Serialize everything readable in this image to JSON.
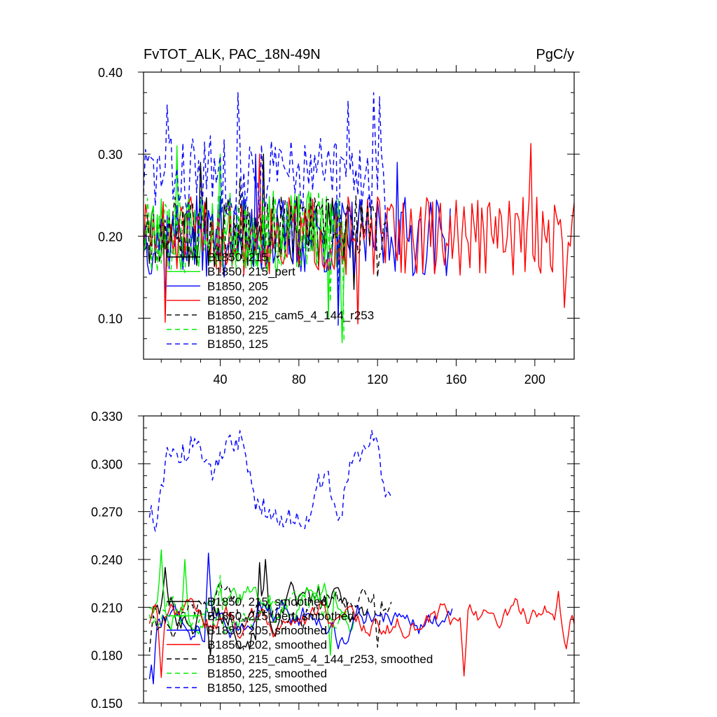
{
  "figure": {
    "title": "FvTOT_ALK, PAC_18N-49N",
    "units": "PgC/y"
  },
  "chart_data": [
    {
      "type": "line",
      "title": "FvTOT_ALK, PAC_18N-49N",
      "units": "PgC/y",
      "xlim": [
        1,
        220
      ],
      "ylim": [
        0.05,
        0.4
      ],
      "xticks": [
        40,
        80,
        120,
        160,
        200
      ],
      "yticks": [
        0.1,
        0.2,
        0.3,
        0.4
      ],
      "ytick_labels": [
        "0.10",
        "0.20",
        "0.30",
        "0.40"
      ],
      "legend_position": "lower-left",
      "series": [
        {
          "name": "B1850, 215",
          "color": "#000000",
          "dash": "solid",
          "length": 112,
          "mean": 0.205,
          "amp": 0.045,
          "seed": 11,
          "extremes": [
            [
              30,
              0.29
            ],
            [
              62,
              0.3
            ],
            [
              108,
              0.135
            ]
          ]
        },
        {
          "name": "B1850, 215_pert",
          "color": "#00ee00",
          "dash": "solid",
          "length": 105,
          "mean": 0.205,
          "amp": 0.05,
          "seed": 23,
          "extremes": [
            [
              18,
              0.31
            ],
            [
              40,
              0.3
            ],
            [
              95,
              0.1
            ],
            [
              102,
              0.07
            ]
          ]
        },
        {
          "name": "B1850, 205",
          "color": "#0000ff",
          "dash": "solid",
          "length": 157,
          "mean": 0.2,
          "amp": 0.05,
          "seed": 37,
          "extremes": [
            [
              12,
              0.11
            ],
            [
              58,
              0.3
            ],
            [
              100,
              0.1
            ],
            [
              130,
              0.29
            ]
          ]
        },
        {
          "name": "B1850, 202",
          "color": "#ff0000",
          "dash": "solid",
          "length": 220,
          "mean": 0.2,
          "amp": 0.048,
          "seed": 51,
          "extremes": [
            [
              12,
              0.095
            ],
            [
              110,
              0.093
            ],
            [
              198,
              0.313
            ],
            [
              215,
              0.113
            ],
            [
              60,
              0.3
            ]
          ]
        },
        {
          "name": "B1850, 215_cam5_4_144_r253",
          "color": "#000000",
          "dash": "dashed",
          "length": 125,
          "mean": 0.21,
          "amp": 0.04,
          "seed": 67,
          "extremes": [
            [
              50,
              0.27
            ],
            [
              120,
              0.15
            ]
          ]
        },
        {
          "name": "B1850, 225",
          "color": "#00ee00",
          "dash": "dashed",
          "length": 103,
          "mean": 0.205,
          "amp": 0.05,
          "seed": 79,
          "extremes": [
            [
              96,
              0.12
            ],
            [
              103,
              0.07
            ]
          ]
        },
        {
          "name": "B1850, 125",
          "color": "#0000ff",
          "dash": "dashed",
          "length": 124,
          "mean": 0.275,
          "amp": 0.05,
          "seed": 83,
          "extremes": [
            [
              13,
              0.36
            ],
            [
              49,
              0.375
            ],
            [
              105,
              0.365
            ],
            [
              118,
              0.375
            ],
            [
              121,
              0.37
            ],
            [
              100,
              0.09
            ]
          ]
        }
      ]
    },
    {
      "type": "line",
      "units": "PgC/y",
      "xlim": [
        1,
        220
      ],
      "ylim": [
        0.15,
        0.33
      ],
      "xticks": [
        40,
        80,
        120,
        160,
        200
      ],
      "yticks": [
        0.15,
        0.18,
        0.21,
        0.24,
        0.27,
        0.3,
        0.33
      ],
      "ytick_labels": [
        "0.150",
        "0.180",
        "0.210",
        "0.240",
        "0.270",
        "0.300",
        "0.330"
      ],
      "legend_position": "lower-left",
      "series": [
        {
          "name": "B1850, 215, smoothed",
          "color": "#000000",
          "dash": "solid",
          "start": 4,
          "length": 112,
          "mean": 0.207,
          "amp": 0.016,
          "seed": 101,
          "extremes": [
            [
              12,
              0.235
            ],
            [
              60,
              0.238
            ],
            [
              63,
              0.24
            ],
            [
              35,
              0.18
            ]
          ]
        },
        {
          "name": "B1850, 215_pert, smoothed",
          "color": "#00ee00",
          "dash": "solid",
          "start": 4,
          "length": 105,
          "mean": 0.212,
          "amp": 0.014,
          "seed": 113,
          "extremes": [
            [
              10,
              0.246
            ],
            [
              22,
              0.24
            ],
            [
              96,
              0.18
            ]
          ]
        },
        {
          "name": "B1850, 205, smoothed",
          "color": "#0000ff",
          "dash": "solid",
          "start": 4,
          "length": 155,
          "mean": 0.205,
          "amp": 0.014,
          "seed": 127,
          "extremes": [
            [
              4,
              0.165
            ],
            [
              6,
              0.162
            ],
            [
              34,
              0.244
            ],
            [
              100,
              0.184
            ]
          ]
        },
        {
          "name": "B1850, 202, smoothed",
          "color": "#ff0000",
          "dash": "solid",
          "start": 4,
          "length": 217,
          "mean": 0.202,
          "amp": 0.012,
          "seed": 139,
          "extremes": [
            [
              10,
              0.166
            ],
            [
              164,
              0.167
            ],
            [
              212,
              0.22
            ],
            [
              216,
              0.184
            ]
          ]
        },
        {
          "name": "B1850, 215_cam5_4_144_r253, smoothed",
          "color": "#000000",
          "dash": "dashed",
          "start": 4,
          "length": 124,
          "mean": 0.205,
          "amp": 0.014,
          "seed": 151,
          "extremes": [
            [
              4,
              0.182
            ],
            [
              113,
              0.222
            ],
            [
              120,
              0.185
            ]
          ]
        },
        {
          "name": "B1850, 225, smoothed",
          "color": "#00ee00",
          "dash": "dashed",
          "start": 4,
          "length": 102,
          "mean": 0.208,
          "amp": 0.014,
          "seed": 163,
          "extremes": [
            [
              40,
              0.23
            ],
            [
              90,
              0.225
            ]
          ]
        },
        {
          "name": "B1850, 125, smoothed",
          "color": "#0000ff",
          "dash": "dashed",
          "start": 4,
          "length": 124,
          "mean": 0.29,
          "amp": 0.007,
          "seed": 173,
          "anchors": [
            [
              4,
              0.269
            ],
            [
              8,
              0.262
            ],
            [
              13,
              0.31
            ],
            [
              20,
              0.305
            ],
            [
              28,
              0.315
            ],
            [
              34,
              0.293
            ],
            [
              44,
              0.31
            ],
            [
              50,
              0.317
            ],
            [
              58,
              0.275
            ],
            [
              64,
              0.272
            ],
            [
              75,
              0.265
            ],
            [
              84,
              0.264
            ],
            [
              90,
              0.29
            ],
            [
              95,
              0.295
            ],
            [
              100,
              0.258
            ],
            [
              106,
              0.3
            ],
            [
              112,
              0.304
            ],
            [
              117,
              0.32
            ],
            [
              121,
              0.305
            ],
            [
              124,
              0.28
            ]
          ]
        }
      ]
    }
  ]
}
